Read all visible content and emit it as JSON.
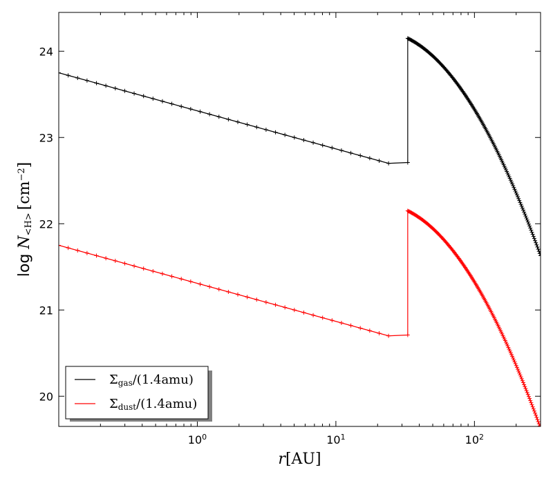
{
  "chart_data": {
    "type": "line",
    "title": "",
    "xlabel": {
      "italic": "r",
      "rest": "[AU]"
    },
    "ylabel": {
      "prefix": "log ",
      "var": "N",
      "sub": "<H>",
      "unit": "[cm",
      "exp": "−2",
      "close": "]"
    },
    "x_scale": "log",
    "xlim": [
      0.1,
      300
    ],
    "ylim": [
      19.65,
      24.45
    ],
    "x_ticks": [
      {
        "value": 1,
        "base": "10",
        "exp": "0"
      },
      {
        "value": 10,
        "base": "10",
        "exp": "1"
      },
      {
        "value": 100,
        "base": "10",
        "exp": "2"
      }
    ],
    "y_ticks": [
      {
        "value": 20,
        "label": "20"
      },
      {
        "value": 21,
        "label": "21"
      },
      {
        "value": 22,
        "label": "22"
      },
      {
        "value": 23,
        "label": "23"
      },
      {
        "value": 24,
        "label": "24"
      }
    ],
    "grid": false,
    "legend_position": "lower-left",
    "series": [
      {
        "name": "Σgas/(1.4amu)",
        "legend": {
          "sym": "Σ",
          "sub": "gas",
          "rest": "/(1.4amu)"
        },
        "color": "#000000",
        "inner": {
          "x_start": 0.1,
          "x_end": 24,
          "y_start": 23.75,
          "y_end": 22.7,
          "n": 36
        },
        "plateau": {
          "x_start": 24,
          "x_end": 33,
          "y": 22.71
        },
        "jump_x": 33,
        "outer": {
          "x_start": 33,
          "x_end": 300,
          "y_start": 24.15,
          "y_end": 21.63,
          "n": 170,
          "curve": 0.7
        }
      },
      {
        "name": "Σdust/(1.4amu)",
        "legend": {
          "sym": "Σ",
          "sub": "dust",
          "rest": "/(1.4amu)"
        },
        "color": "#ff0000",
        "inner": {
          "x_start": 0.1,
          "x_end": 24,
          "y_start": 21.75,
          "y_end": 20.7,
          "n": 36
        },
        "plateau": {
          "x_start": 24,
          "x_end": 33,
          "y": 20.71
        },
        "jump_x": 33,
        "outer": {
          "x_start": 33,
          "x_end": 300,
          "y_start": 22.15,
          "y_end": 19.63,
          "n": 170,
          "curve": 0.7
        }
      }
    ]
  }
}
